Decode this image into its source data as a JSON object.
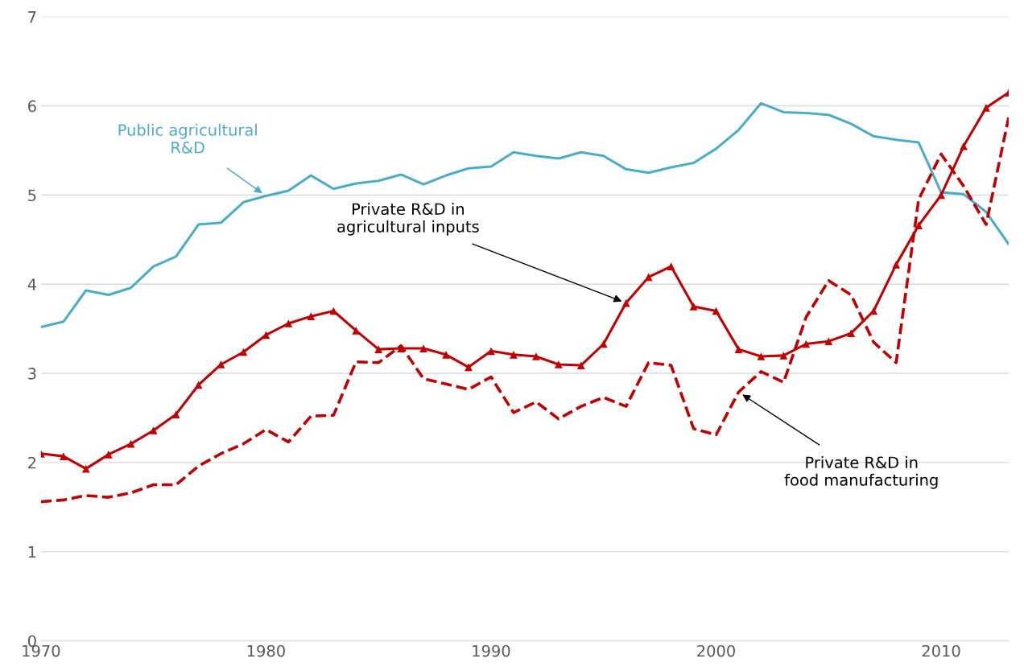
{
  "chart_data": {
    "type": "line",
    "x": [
      1970,
      1971,
      1972,
      1973,
      1974,
      1975,
      1976,
      1977,
      1978,
      1979,
      1980,
      1981,
      1982,
      1983,
      1984,
      1985,
      1986,
      1987,
      1988,
      1989,
      1990,
      1991,
      1992,
      1993,
      1994,
      1995,
      1996,
      1997,
      1998,
      1999,
      2000,
      2001,
      2002,
      2003,
      2004,
      2005,
      2006,
      2007,
      2008,
      2009,
      2010,
      2011,
      2012,
      2013
    ],
    "series": [
      {
        "color": "#4bacc6",
        "marker": "none",
        "line_style": "solid",
        "values": [
          3.52,
          3.58,
          3.93,
          3.88,
          3.96,
          4.2,
          4.31,
          4.67,
          4.69,
          4.92,
          4.99,
          5.05,
          5.22,
          5.07,
          5.13,
          5.16,
          5.23,
          5.12,
          5.22,
          5.3,
          5.32,
          5.48,
          5.44,
          5.41,
          5.48,
          5.44,
          5.29,
          5.25,
          5.31,
          5.36,
          5.52,
          5.73,
          6.03,
          5.93,
          5.92,
          5.9,
          5.8,
          5.66,
          5.62,
          5.59,
          5.03,
          5.01,
          4.81,
          4.45
        ]
      },
      {
        "color": "#c00000",
        "marker": "triangle",
        "line_style": "solid",
        "values": [
          2.1,
          2.07,
          1.93,
          2.09,
          2.21,
          2.36,
          2.54,
          2.87,
          3.1,
          3.24,
          3.43,
          3.56,
          3.64,
          3.7,
          3.48,
          3.27,
          3.28,
          3.28,
          3.21,
          3.07,
          3.25,
          3.21,
          3.19,
          3.1,
          3.09,
          3.33,
          3.79,
          4.08,
          4.2,
          3.75,
          3.7,
          3.27,
          3.19,
          3.2,
          3.33,
          3.36,
          3.45,
          3.7,
          4.22,
          4.66,
          5.0,
          5.55,
          5.98,
          6.15
        ]
      },
      {
        "color": "#c00000",
        "marker": "none",
        "line_style": "dashed",
        "values": [
          1.56,
          1.58,
          1.63,
          1.61,
          1.66,
          1.75,
          1.75,
          1.96,
          2.1,
          2.21,
          2.37,
          2.23,
          2.52,
          2.53,
          3.13,
          3.12,
          3.31,
          2.94,
          2.88,
          2.82,
          2.96,
          2.56,
          2.68,
          2.49,
          2.63,
          2.73,
          2.63,
          3.12,
          3.09,
          2.38,
          2.31,
          2.79,
          3.02,
          2.9,
          3.63,
          4.04,
          3.88,
          3.35,
          3.12,
          4.95,
          5.46,
          5.1,
          4.67,
          5.87
        ]
      }
    ],
    "annotations": [
      {
        "text": "Public agricultural\nR&D",
        "x": 1980,
        "y": 4.99
      },
      {
        "text": "Private R&D in\nagricultural inputs",
        "x": 1996,
        "y": 3.79
      },
      {
        "text": "Private R&D in\nfood manufacturing",
        "x": 2001,
        "y": 2.79
      }
    ],
    "xlim": [
      1970,
      2013
    ],
    "xticks": [
      1970,
      1980,
      1990,
      2000,
      2010
    ],
    "ylim": [
      0,
      7
    ],
    "yticks": [
      0,
      1,
      2,
      3,
      4,
      5,
      6,
      7
    ],
    "grid": "y"
  }
}
